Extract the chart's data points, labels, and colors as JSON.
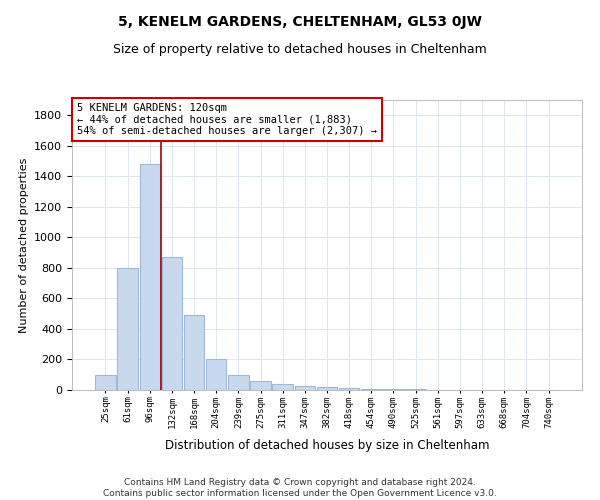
{
  "title": "5, KENELM GARDENS, CHELTENHAM, GL53 0JW",
  "subtitle": "Size of property relative to detached houses in Cheltenham",
  "xlabel": "Distribution of detached houses by size in Cheltenham",
  "ylabel": "Number of detached properties",
  "categories": [
    "25sqm",
    "61sqm",
    "96sqm",
    "132sqm",
    "168sqm",
    "204sqm",
    "239sqm",
    "275sqm",
    "311sqm",
    "347sqm",
    "382sqm",
    "418sqm",
    "454sqm",
    "490sqm",
    "525sqm",
    "561sqm",
    "597sqm",
    "633sqm",
    "668sqm",
    "704sqm",
    "740sqm"
  ],
  "values": [
    100,
    800,
    1480,
    870,
    490,
    200,
    100,
    60,
    40,
    28,
    20,
    10,
    5,
    5,
    5,
    3,
    2,
    2,
    2,
    2,
    2
  ],
  "bar_color": "#c8d9ee",
  "bar_edge_color": "#a0b8d8",
  "annotation_line1": "5 KENELM GARDENS: 120sqm",
  "annotation_line2": "← 44% of detached houses are smaller (1,883)",
  "annotation_line3": "54% of semi-detached houses are larger (2,307) →",
  "annotation_box_color": "#cc0000",
  "ref_line_x": 2.5,
  "ylim": [
    0,
    1900
  ],
  "yticks": [
    0,
    200,
    400,
    600,
    800,
    1000,
    1200,
    1400,
    1600,
    1800
  ],
  "footer_line1": "Contains HM Land Registry data © Crown copyright and database right 2024.",
  "footer_line2": "Contains public sector information licensed under the Open Government Licence v3.0.",
  "background_color": "#ffffff",
  "grid_color": "#dce6f0",
  "title_fontsize": 10,
  "subtitle_fontsize": 9
}
